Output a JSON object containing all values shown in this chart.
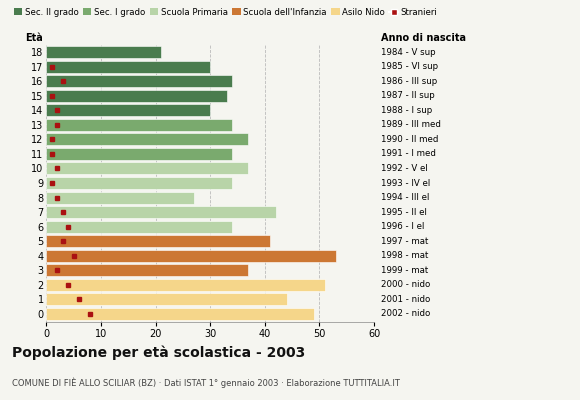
{
  "ages": [
    18,
    17,
    16,
    15,
    14,
    13,
    12,
    11,
    10,
    9,
    8,
    7,
    6,
    5,
    4,
    3,
    2,
    1,
    0
  ],
  "anno": [
    "1984 - V sup",
    "1985 - VI sup",
    "1986 - III sup",
    "1987 - II sup",
    "1988 - I sup",
    "1989 - III med",
    "1990 - II med",
    "1991 - I med",
    "1992 - V el",
    "1993 - IV el",
    "1994 - III el",
    "1995 - II el",
    "1996 - I el",
    "1997 - mat",
    "1998 - mat",
    "1999 - mat",
    "2000 - nido",
    "2001 - nido",
    "2002 - nido"
  ],
  "bar_values": [
    21,
    30,
    34,
    33,
    30,
    34,
    37,
    34,
    37,
    34,
    27,
    42,
    34,
    41,
    53,
    37,
    51,
    44,
    49
  ],
  "stranieri": [
    0,
    1,
    3,
    1,
    2,
    2,
    1,
    1,
    2,
    1,
    2,
    3,
    4,
    3,
    5,
    2,
    4,
    6,
    8
  ],
  "categories": {
    "sec2": [
      18,
      17,
      16,
      15,
      14
    ],
    "sec1": [
      13,
      12,
      11
    ],
    "primaria": [
      10,
      9,
      8,
      7,
      6
    ],
    "infanzia": [
      5,
      4,
      3
    ],
    "nido": [
      2,
      1,
      0
    ]
  },
  "colors": {
    "sec2": "#4a7c4e",
    "sec1": "#7aaa6e",
    "primaria": "#b8d4a8",
    "infanzia": "#cc7733",
    "nido": "#f5d68a"
  },
  "stranieri_color": "#aa1111",
  "legend_labels": [
    "Sec. II grado",
    "Sec. I grado",
    "Scuola Primaria",
    "Scuola dell'Infanzia",
    "Asilo Nido",
    "Stranieri"
  ],
  "title": "Popolazione per età scolastica - 2003",
  "subtitle": "COMUNE DI FIÈ ALLO SCILIAR (BZ) · Dati ISTAT 1° gennaio 2003 · Elaborazione TUTTITALIA.IT",
  "xlabel_eta": "Età",
  "xlabel_anno": "Anno di nascita",
  "xlim": [
    0,
    60
  ],
  "xticks": [
    0,
    10,
    20,
    30,
    40,
    50,
    60
  ],
  "bg": "#f5f5f0"
}
